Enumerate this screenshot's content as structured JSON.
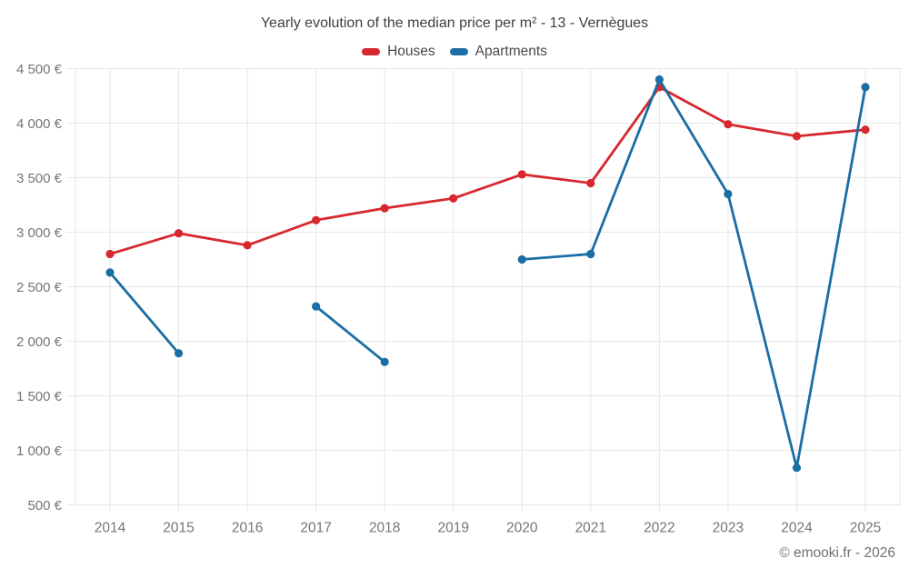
{
  "title": "Yearly evolution of the median price per m² - 13 - Vernègues",
  "footer": "© emooki.fr - 2026",
  "legend": [
    {
      "label": "Houses",
      "color": "#d7282f"
    },
    {
      "label": "Apartments",
      "color": "#1b6ea5"
    }
  ],
  "colors": {
    "houses": "#d7282f",
    "apartments": "#1b6ea5",
    "grid": "#e7e7e7",
    "axis_text": "#757575",
    "title_text": "#3f3f3f",
    "background": "#ffffff"
  },
  "chart_data": {
    "type": "line",
    "title": "Yearly evolution of the median price per m² - 13 - Vernègues",
    "x": [
      "2014",
      "2015",
      "2016",
      "2017",
      "2018",
      "2019",
      "2020",
      "2021",
      "2022",
      "2023",
      "2024",
      "2025"
    ],
    "series": [
      {
        "name": "Houses",
        "color": "#d7282f",
        "values": [
          2800,
          2990,
          2880,
          3110,
          3220,
          3310,
          3530,
          3450,
          4330,
          3990,
          3880,
          3940
        ]
      },
      {
        "name": "Apartments",
        "color": "#1b6ea5",
        "values": [
          2630,
          1890,
          null,
          2320,
          1810,
          null,
          2750,
          2800,
          4400,
          3350,
          840,
          4330
        ]
      }
    ],
    "xlabel": "",
    "ylabel": "",
    "ylim": [
      500,
      4500
    ],
    "y_step": 500,
    "y_tick_values": [
      500,
      1000,
      1500,
      2000,
      2500,
      3000,
      3500,
      4000,
      4500
    ],
    "y_tick_labels": [
      "500 €",
      "1 000 €",
      "1 500 €",
      "2 000 €",
      "2 500 €",
      "3 000 €",
      "3 500 €",
      "4 000 €",
      "4 500 €"
    ],
    "grid": true,
    "legend_position": "top",
    "y_unit": "€"
  }
}
